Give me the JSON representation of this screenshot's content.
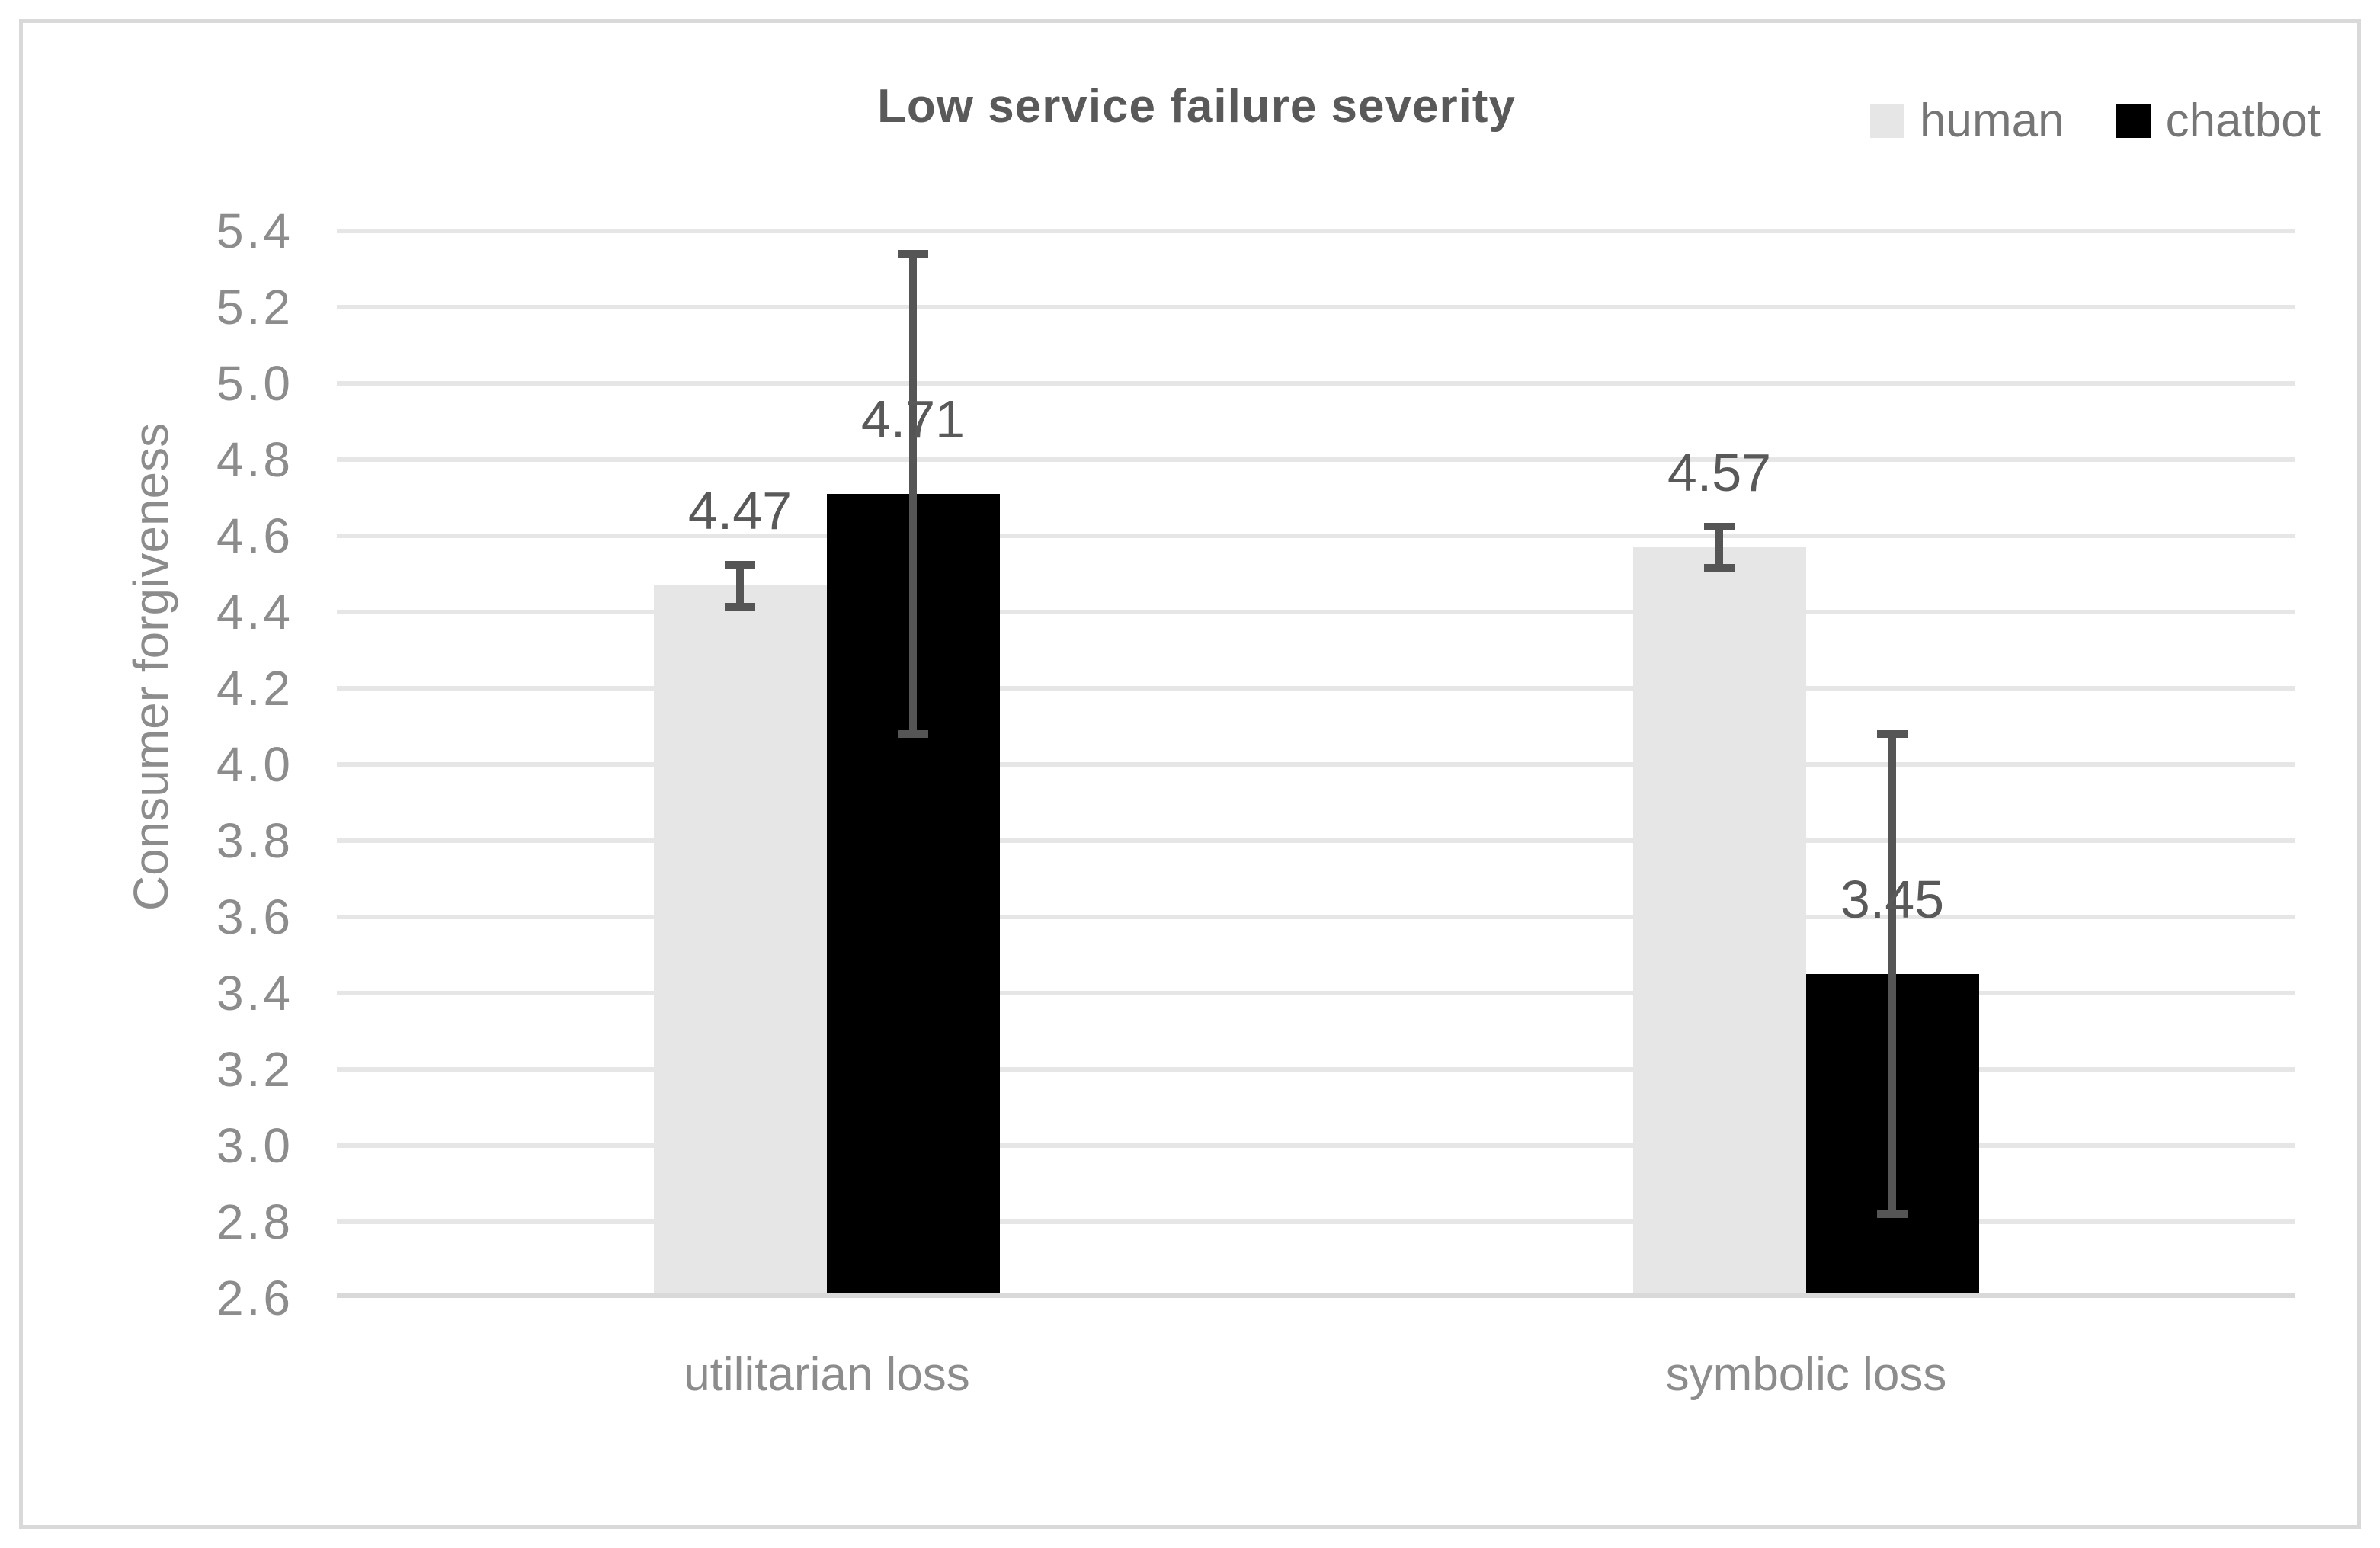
{
  "figure_title": "Low service failure severity",
  "chart_data": {
    "type": "bar",
    "title": "Low service failure severity",
    "categories": [
      "utilitarian loss",
      "symbolic loss"
    ],
    "series": [
      {
        "name": "human",
        "color": "#e6e6e6",
        "values": [
          4.47,
          4.57
        ],
        "errors": [
          0.055,
          0.055
        ],
        "data_labels": [
          "4.47",
          "4.57"
        ]
      },
      {
        "name": "chatbot",
        "color": "#000000",
        "values": [
          4.71,
          3.45
        ],
        "errors": [
          0.63,
          0.63
        ],
        "data_labels": [
          "4.71",
          "3.45"
        ]
      }
    ],
    "xlabel": "",
    "ylabel": "Consumer forgiveness",
    "ylim": [
      2.6,
      5.4
    ],
    "ytick_step": 0.2,
    "ytick_labels": [
      "5.4",
      "5.2",
      "5.0",
      "4.8",
      "4.6",
      "4.4",
      "4.2",
      "4.0",
      "3.8",
      "3.6",
      "3.4",
      "3.2",
      "3.0",
      "2.8",
      "2.6"
    ],
    "grid": true,
    "legend_position": "top-right",
    "error_bar_color": "#555555",
    "gridline_color": "#e6e6e6",
    "axis_line_color": "#d9d9d9",
    "title_color": "#595959",
    "axis_text_color": "#8c8c8c",
    "data_label_color": "#595959"
  }
}
